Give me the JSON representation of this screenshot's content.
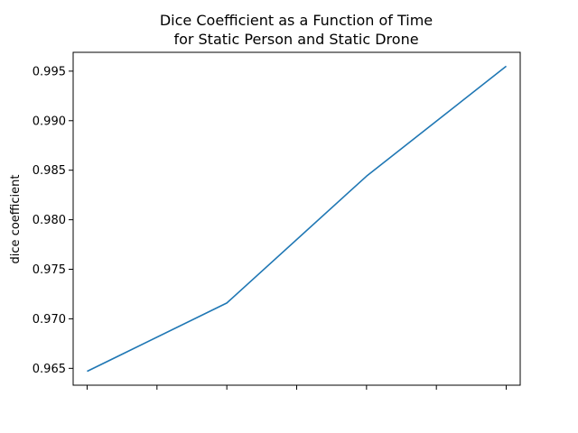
{
  "chart_data": {
    "type": "line",
    "title_lines": [
      "Dice Coefficient as a Function of Time",
      "for Static Person and Static Drone"
    ],
    "xlabel": "",
    "ylabel": "dice coefficient",
    "x": [
      0,
      1,
      2,
      3
    ],
    "series": [
      {
        "values": [
          0.9647,
          0.9716,
          0.9844,
          0.9955
        ],
        "color": "#1f77b4"
      }
    ],
    "xlim": [
      -0.1,
      3.1
    ],
    "ylim": [
      0.9633,
      0.9969
    ],
    "xticks": [
      0,
      0.5,
      1,
      1.5,
      2,
      2.5,
      3
    ],
    "xtick_labels_visible": false,
    "yticks": [
      0.965,
      0.97,
      0.975,
      0.98,
      0.985,
      0.99,
      0.995
    ],
    "ytick_labels": [
      "0.965",
      "0.970",
      "0.975",
      "0.980",
      "0.985",
      "0.990",
      "0.995"
    ],
    "grid": false,
    "legend": false
  }
}
